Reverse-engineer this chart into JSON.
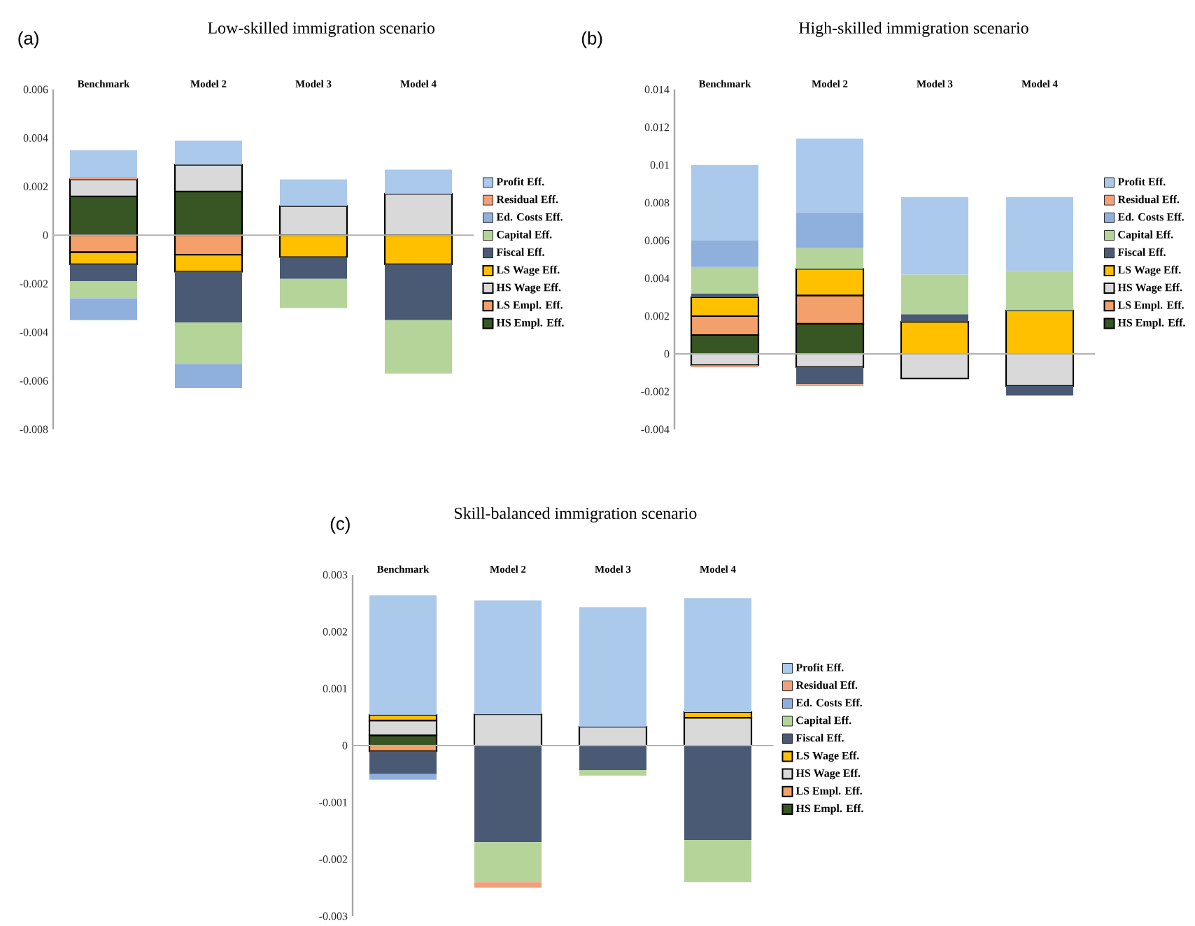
{
  "chart_data": [
    {
      "type": "bar",
      "stacked": true,
      "title": "Low-skilled immigration scenario",
      "annotations": [
        "(a)"
      ],
      "legend": "right",
      "categories": [
        "Benchmark",
        "Model 2",
        "Model 3",
        "Model 4"
      ],
      "ylim": [
        -0.008,
        0.006
      ],
      "yticks": [
        -0.008,
        -0.006,
        -0.004,
        -0.002,
        0,
        0.002,
        0.004,
        0.006
      ],
      "series": [
        {
          "name": "HS Empl. Eff.",
          "color": "#375623",
          "values": [
            0.0016,
            0.0018,
            null,
            null
          ]
        },
        {
          "name": "LS Empl. Eff.",
          "color": "#f4a06a",
          "values": [
            -0.0007,
            -0.0008,
            null,
            null
          ]
        },
        {
          "name": "HS Wage Eff.",
          "color": "#d9d9d9",
          "values": [
            0.0007,
            0.0011,
            0.0012,
            0.0017
          ]
        },
        {
          "name": "LS Wage Eff.",
          "color": "#ffc000",
          "values": [
            -0.0005,
            -0.0007,
            -0.0009,
            -0.0012
          ]
        },
        {
          "name": "Fiscal Eff.",
          "color": "#4a5a75",
          "values": [
            -0.0007,
            -0.0021,
            -0.0009,
            -0.0023
          ]
        },
        {
          "name": "Capital Eff.",
          "color": "#b5d49a",
          "values": [
            -0.0007,
            -0.0017,
            -0.0012,
            -0.0022
          ]
        },
        {
          "name": "Ed. Costs Eff.",
          "color": "#8fb0dc",
          "values": [
            -0.0009,
            -0.001,
            null,
            null
          ]
        },
        {
          "name": "Residual Eff.",
          "color": "#f0a07a",
          "values": [
            0.0001,
            null,
            null,
            null
          ]
        },
        {
          "name": "Profit Eff.",
          "color": "#abc9ea",
          "values": [
            0.0011,
            0.001,
            0.0011,
            0.001
          ]
        }
      ]
    },
    {
      "type": "bar",
      "stacked": true,
      "title": "High-skilled immigration scenario",
      "annotations": [
        "(b)"
      ],
      "legend": "right",
      "categories": [
        "Benchmark",
        "Model 2",
        "Model 3",
        "Model 4"
      ],
      "ylim": [
        -0.004,
        0.014
      ],
      "yticks": [
        -0.004,
        -0.002,
        0,
        0.002,
        0.004,
        0.006,
        0.008,
        0.01,
        0.012,
        0.014
      ],
      "series": [
        {
          "name": "HS Empl. Eff.",
          "color": "#375623",
          "values": [
            0.001,
            0.0016,
            null,
            null
          ]
        },
        {
          "name": "LS Empl. Eff.",
          "color": "#f4a06a",
          "values": [
            0.001,
            0.0015,
            null,
            null
          ]
        },
        {
          "name": "HS Wage Eff.",
          "color": "#d9d9d9",
          "values": [
            -0.0006,
            -0.0007,
            -0.0013,
            -0.0017
          ]
        },
        {
          "name": "LS Wage Eff.",
          "color": "#ffc000",
          "values": [
            0.001,
            0.0014,
            0.0017,
            0.0023
          ]
        },
        {
          "name": "Fiscal Eff.",
          "color": "#4a5a75",
          "values": [
            0.0002,
            -0.0009,
            0.0004,
            -0.0005
          ]
        },
        {
          "name": "Capital Eff.",
          "color": "#b5d49a",
          "values": [
            0.0014,
            0.0011,
            0.0021,
            0.0021
          ]
        },
        {
          "name": "Ed. Costs Eff.",
          "color": "#8fb0dc",
          "values": [
            0.0014,
            0.0019,
            null,
            null
          ]
        },
        {
          "name": "Residual Eff.",
          "color": "#f0a07a",
          "values": [
            -0.0001,
            -0.0001,
            null,
            null
          ]
        },
        {
          "name": "Profit Eff.",
          "color": "#abc9ea",
          "values": [
            0.004,
            0.0039,
            0.0041,
            0.0039
          ]
        }
      ]
    },
    {
      "type": "bar",
      "stacked": true,
      "title": "Skill-balanced immigration scenario",
      "annotations": [
        "(c)"
      ],
      "legend": "right",
      "categories": [
        "Benchmark",
        "Model 2",
        "Model 3",
        "Model 4"
      ],
      "ylim": [
        -0.003,
        0.003
      ],
      "yticks": [
        -0.003,
        -0.002,
        -0.001,
        0,
        0.001,
        0.002,
        0.003
      ],
      "series": [
        {
          "name": "HS Empl. Eff.",
          "color": "#375623",
          "values": [
            0.00018,
            null,
            null,
            null
          ]
        },
        {
          "name": "LS Empl. Eff.",
          "color": "#f4a06a",
          "values": [
            -0.0001,
            null,
            null,
            null
          ]
        },
        {
          "name": "HS Wage Eff.",
          "color": "#d9d9d9",
          "values": [
            0.00026,
            0.00055,
            0.00033,
            0.00049
          ]
        },
        {
          "name": "LS Wage Eff.",
          "color": "#ffc000",
          "values": [
            0.0001,
            null,
            null,
            0.0001
          ]
        },
        {
          "name": "Fiscal Eff.",
          "color": "#4a5a75",
          "values": [
            -0.0004,
            -0.0017,
            -0.00043,
            -0.00166
          ]
        },
        {
          "name": "Capital Eff.",
          "color": "#b5d49a",
          "values": [
            null,
            -0.0007,
            -0.0001,
            -0.00074
          ]
        },
        {
          "name": "Ed. Costs Eff.",
          "color": "#8fb0dc",
          "values": [
            -0.0001,
            null,
            null,
            null
          ]
        },
        {
          "name": "Residual Eff.",
          "color": "#f0a07a",
          "values": [
            null,
            -0.0001,
            null,
            null
          ]
        },
        {
          "name": "Profit Eff.",
          "color": "#abc9ea",
          "values": [
            0.0021,
            0.002,
            0.0021,
            0.002
          ]
        }
      ]
    }
  ]
}
